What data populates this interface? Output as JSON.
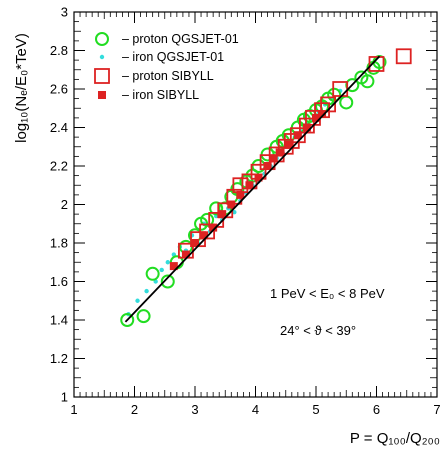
{
  "chart_data": {
    "type": "scatter",
    "xlabel": "P = Q₁₀₀/Q₂₀₀",
    "ylabel": "log₁₀(Nₑ/E₀*TeV)",
    "xlim": [
      1,
      7
    ],
    "ylim": [
      1,
      3
    ],
    "x_ticks": [
      "1",
      "2",
      "3",
      "4",
      "5",
      "6",
      "7"
    ],
    "y_ticks": [
      "1",
      "1.2",
      "1.4",
      "1.6",
      "1.8",
      "2",
      "2.2",
      "2.4",
      "2.6",
      "2.8",
      "3"
    ],
    "grid": false,
    "legend_position": "top-left",
    "series": [
      {
        "name": "– proton QGSJET-01",
        "marker": "open-circle",
        "color": "#22dd22",
        "points": [
          [
            1.88,
            1.4
          ],
          [
            2.15,
            1.42
          ],
          [
            2.3,
            1.64
          ],
          [
            2.55,
            1.6
          ],
          [
            2.7,
            1.7
          ],
          [
            2.85,
            1.78
          ],
          [
            3.0,
            1.84
          ],
          [
            3.1,
            1.9
          ],
          [
            3.2,
            1.92
          ],
          [
            3.35,
            1.98
          ],
          [
            3.5,
            1.98
          ],
          [
            3.6,
            2.04
          ],
          [
            3.7,
            2.08
          ],
          [
            3.85,
            2.12
          ],
          [
            3.95,
            2.15
          ],
          [
            4.05,
            2.2
          ],
          [
            4.2,
            2.26
          ],
          [
            4.35,
            2.3
          ],
          [
            4.45,
            2.33
          ],
          [
            4.55,
            2.36
          ],
          [
            4.7,
            2.4
          ],
          [
            4.8,
            2.44
          ],
          [
            4.9,
            2.46
          ],
          [
            5.0,
            2.49
          ],
          [
            5.1,
            2.51
          ],
          [
            5.2,
            2.55
          ],
          [
            5.3,
            2.57
          ],
          [
            5.5,
            2.53
          ],
          [
            5.6,
            2.62
          ],
          [
            5.75,
            2.66
          ],
          [
            5.85,
            2.64
          ],
          [
            5.95,
            2.71
          ],
          [
            6.05,
            2.74
          ]
        ]
      },
      {
        "name": "– iron QGSJET-01",
        "marker": "dot",
        "color": "#33dddd",
        "points": [
          [
            1.9,
            1.43
          ],
          [
            2.05,
            1.5
          ],
          [
            2.2,
            1.55
          ],
          [
            2.35,
            1.6
          ],
          [
            2.45,
            1.66
          ],
          [
            2.55,
            1.7
          ],
          [
            2.65,
            1.74
          ],
          [
            2.75,
            1.78
          ],
          [
            2.85,
            1.76
          ],
          [
            2.95,
            1.84
          ],
          [
            3.05,
            1.8
          ],
          [
            3.15,
            1.9
          ],
          [
            3.25,
            1.86
          ],
          [
            3.35,
            1.94
          ],
          [
            3.45,
            1.92
          ],
          [
            3.55,
            1.98
          ],
          [
            3.65,
            1.96
          ],
          [
            3.75,
            2.02
          ],
          [
            3.85,
            2.06
          ],
          [
            3.95,
            2.1
          ],
          [
            4.05,
            2.12
          ],
          [
            4.15,
            2.16
          ],
          [
            4.25,
            2.2
          ],
          [
            4.35,
            2.24
          ],
          [
            4.45,
            2.27
          ],
          [
            4.55,
            2.31
          ],
          [
            4.65,
            2.35
          ],
          [
            4.75,
            2.38
          ],
          [
            4.85,
            2.42
          ],
          [
            4.95,
            2.44
          ],
          [
            5.05,
            2.48
          ],
          [
            5.15,
            2.52
          ],
          [
            5.25,
            2.55
          ],
          [
            5.4,
            2.59
          ]
        ]
      },
      {
        "name": "– proton SIBYLL",
        "marker": "open-square",
        "color": "#dd2222",
        "points": [
          [
            2.85,
            1.76
          ],
          [
            3.05,
            1.82
          ],
          [
            3.2,
            1.86
          ],
          [
            3.35,
            1.92
          ],
          [
            3.5,
            1.97
          ],
          [
            3.65,
            2.04
          ],
          [
            3.75,
            2.1
          ],
          [
            3.9,
            2.12
          ],
          [
            4.05,
            2.17
          ],
          [
            4.2,
            2.22
          ],
          [
            4.35,
            2.26
          ],
          [
            4.5,
            2.3
          ],
          [
            4.6,
            2.33
          ],
          [
            4.7,
            2.36
          ],
          [
            4.85,
            2.41
          ],
          [
            4.95,
            2.45
          ],
          [
            5.1,
            2.49
          ],
          [
            5.2,
            2.52
          ],
          [
            5.4,
            2.6
          ],
          [
            6.0,
            2.73
          ],
          [
            6.45,
            2.77
          ]
        ]
      },
      {
        "name": "– iron SIBYLL",
        "marker": "filled-square",
        "color": "#dd2222",
        "points": [
          [
            2.65,
            1.68
          ],
          [
            2.85,
            1.74
          ],
          [
            3.0,
            1.8
          ],
          [
            3.15,
            1.84
          ],
          [
            3.3,
            1.88
          ],
          [
            3.45,
            1.95
          ],
          [
            3.6,
            2.0
          ],
          [
            3.75,
            2.05
          ],
          [
            3.9,
            2.1
          ],
          [
            4.05,
            2.14
          ],
          [
            4.2,
            2.2
          ],
          [
            4.3,
            2.24
          ],
          [
            4.4,
            2.27
          ],
          [
            4.55,
            2.31
          ],
          [
            4.7,
            2.36
          ],
          [
            4.85,
            2.4
          ],
          [
            5.0,
            2.45
          ],
          [
            5.1,
            2.47
          ]
        ]
      }
    ],
    "fit_line": {
      "x": [
        1.85,
        6.05
      ],
      "y": [
        1.39,
        2.77
      ],
      "color": "#000000"
    },
    "annotations": [
      "1 PeV < E₀ < 8 PeV",
      "24° < ϑ < 39°"
    ]
  }
}
